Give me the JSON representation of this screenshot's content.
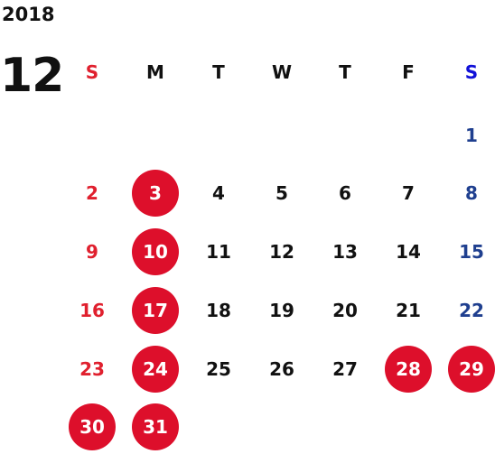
{
  "calendar": {
    "year": "2018",
    "month": "12",
    "weekdays": [
      "S",
      "M",
      "T",
      "W",
      "T",
      "F",
      "S"
    ],
    "first_weekday_index": 6,
    "days_in_month": 31,
    "holidays": [
      3,
      10,
      17,
      24,
      28,
      29,
      30,
      31
    ],
    "colors": {
      "sunday": "#e0202e",
      "saturday": "#1f3f8f",
      "saturday_header": "#1010d8",
      "weekday": "#111111",
      "holiday_fill": "#dd0f2b",
      "holiday_text": "#ffffff"
    }
  }
}
